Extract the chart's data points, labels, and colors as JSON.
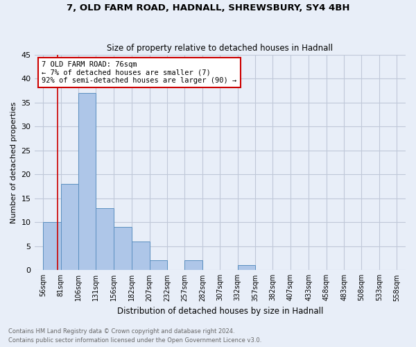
{
  "title1": "7, OLD FARM ROAD, HADNALL, SHREWSBURY, SY4 4BH",
  "title2": "Size of property relative to detached houses in Hadnall",
  "xlabel": "Distribution of detached houses by size in Hadnall",
  "ylabel": "Number of detached properties",
  "footnote": "Contains HM Land Registry data © Crown copyright and database right 2024.\nContains public sector information licensed under the Open Government Licence v3.0.",
  "bin_edges": [
    56,
    81,
    106,
    131,
    156,
    182,
    207,
    232,
    257,
    282,
    307,
    332,
    357,
    382,
    407,
    433,
    458,
    483,
    508,
    533,
    558
  ],
  "bar_values": [
    10,
    18,
    37,
    13,
    9,
    6,
    2,
    0,
    2,
    0,
    0,
    1,
    0,
    0,
    0,
    0,
    0,
    0,
    0,
    0
  ],
  "bin_labels": [
    "56sqm",
    "81sqm",
    "106sqm",
    "131sqm",
    "156sqm",
    "182sqm",
    "207sqm",
    "232sqm",
    "257sqm",
    "282sqm",
    "307sqm",
    "332sqm",
    "357sqm",
    "382sqm",
    "407sqm",
    "433sqm",
    "458sqm",
    "483sqm",
    "508sqm",
    "533sqm",
    "558sqm"
  ],
  "bar_color": "#aec6e8",
  "bar_edge_color": "#5a8fc0",
  "annotation_box_text": "7 OLD FARM ROAD: 76sqm\n← 7% of detached houses are smaller (7)\n92% of semi-detached houses are larger (90) →",
  "annotation_box_color": "#ffffff",
  "annotation_box_edge_color": "#cc0000",
  "ref_line_x": 76,
  "ref_line_color": "#cc0000",
  "ylim": [
    0,
    45
  ],
  "yticks": [
    0,
    5,
    10,
    15,
    20,
    25,
    30,
    35,
    40,
    45
  ],
  "grid_color": "#c0c8d8",
  "background_color": "#e8eef8"
}
